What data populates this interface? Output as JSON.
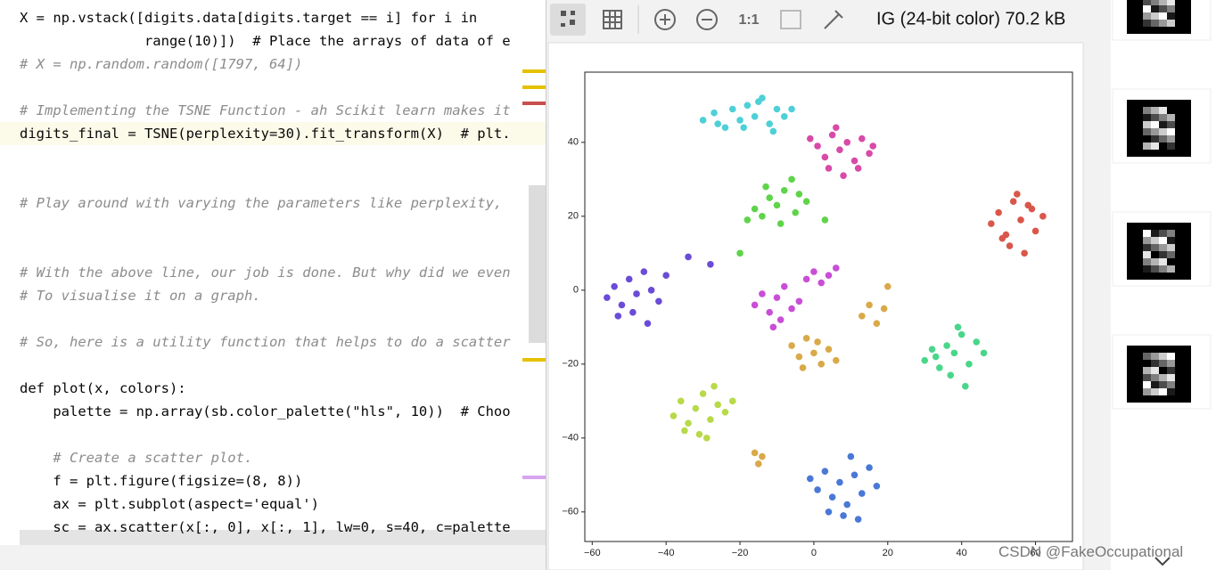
{
  "editor": {
    "lines": [
      "X = np.vstack([digits.data[digits.target == i] for i in",
      "               range(10)])  # Place the arrays of data of e",
      "# X = np.random.random([1797, 64])",
      "# Implementing the TSNE Function - ah Scikit learn makes it",
      "digits_final = TSNE(perplexity=30).fit_transform(X)  # plt.",
      "# Play around with varying the parameters like perplexity,",
      "# With the above line, our job is done. But why did we even",
      "# To visualise it on a graph.",
      "# So, here is a utility function that helps to do a scatter",
      "def plot(x, colors):",
      "    palette = np.array(sb.color_palette(\"hls\", 10))  # Choo",
      "    # Create a scatter plot.",
      "    f = plt.figure(figsize=(8, 8))",
      "    ax = plt.subplot(aspect='equal')",
      "    sc = ax.scatter(x[:, 0], x[:, 1], lw=0, s=40, c=palette"
    ]
  },
  "viewer": {
    "zoom_label": "1:1",
    "info": "IG (24-bit color) 70.2 kB"
  },
  "watermark": "CSDN @FakeOccupational",
  "chart_data": {
    "type": "scatter",
    "xlim": [
      -62,
      70
    ],
    "ylim": [
      -68,
      59
    ],
    "xticks": [
      {
        "value": -60,
        "label": "−60"
      },
      {
        "value": -40,
        "label": "−40"
      },
      {
        "value": -20,
        "label": "−20"
      },
      0,
      20,
      40,
      60
    ],
    "yticks": [
      {
        "value": -60,
        "label": "−60"
      },
      {
        "value": -40,
        "label": "−40"
      },
      {
        "value": -20,
        "label": "−20"
      },
      0,
      20,
      40
    ],
    "series": [
      {
        "color": "#4dd0d8",
        "x": [
          -30,
          -27,
          -24,
          -22,
          -20,
          -18,
          -16,
          -14,
          -12,
          -10,
          -8,
          -6,
          -26,
          -19,
          -15,
          -11
        ],
        "y": [
          46,
          48,
          44,
          49,
          46,
          50,
          47,
          52,
          45,
          49,
          47,
          49,
          45,
          44,
          51,
          43
        ]
      },
      {
        "color": "#d84aa8",
        "x": [
          -1,
          1,
          3,
          5,
          7,
          9,
          11,
          13,
          15,
          16,
          4,
          8,
          12,
          6
        ],
        "y": [
          41,
          39,
          36,
          42,
          38,
          40,
          35,
          41,
          37,
          39,
          33,
          31,
          33,
          44
        ]
      },
      {
        "color": "#5fd44a",
        "x": [
          -18,
          -16,
          -14,
          -12,
          -10,
          -8,
          -6,
          -4,
          -2,
          -9,
          -13,
          -5,
          -20,
          3
        ],
        "y": [
          19,
          22,
          20,
          25,
          23,
          27,
          30,
          26,
          24,
          18,
          28,
          21,
          10,
          19
        ]
      },
      {
        "color": "#d9574a",
        "x": [
          48,
          50,
          52,
          54,
          56,
          58,
          60,
          62,
          53,
          57,
          55,
          51,
          59
        ],
        "y": [
          18,
          21,
          15,
          24,
          19,
          23,
          16,
          20,
          12,
          10,
          26,
          14,
          22
        ]
      },
      {
        "color": "#6a4cd6",
        "x": [
          -56,
          -54,
          -52,
          -50,
          -48,
          -46,
          -44,
          -42,
          -49,
          -45,
          -53,
          -40,
          -34,
          -28
        ],
        "y": [
          -2,
          1,
          -4,
          3,
          -1,
          5,
          0,
          -3,
          -6,
          -9,
          -7,
          4,
          9,
          7
        ]
      },
      {
        "color": "#c94ed6",
        "x": [
          -16,
          -14,
          -12,
          -10,
          -8,
          -6,
          -4,
          -2,
          0,
          2,
          4,
          6,
          -9,
          -11
        ],
        "y": [
          -4,
          -1,
          -6,
          -2,
          1,
          -5,
          -3,
          3,
          5,
          2,
          4,
          6,
          -8,
          -10
        ]
      },
      {
        "color": "#d9a94a",
        "x": [
          -6,
          -4,
          -2,
          0,
          2,
          4,
          6,
          -3,
          1,
          13,
          15,
          17,
          19,
          20,
          -16,
          -15,
          -14
        ],
        "y": [
          -15,
          -18,
          -13,
          -17,
          -20,
          -16,
          -19,
          -21,
          -14,
          -7,
          -4,
          -9,
          -5,
          1,
          -44,
          -47,
          -45
        ]
      },
      {
        "color": "#4ad68a",
        "x": [
          30,
          32,
          34,
          36,
          38,
          40,
          42,
          44,
          37,
          41,
          33,
          39,
          46
        ],
        "y": [
          -19,
          -16,
          -21,
          -15,
          -17,
          -12,
          -20,
          -14,
          -23,
          -26,
          -18,
          -10,
          -17
        ]
      },
      {
        "color": "#b8d94a",
        "x": [
          -38,
          -36,
          -34,
          -32,
          -30,
          -28,
          -26,
          -24,
          -22,
          -31,
          -35,
          -27,
          -29
        ],
        "y": [
          -34,
          -30,
          -36,
          -32,
          -28,
          -35,
          -31,
          -33,
          -30,
          -39,
          -38,
          -26,
          -40
        ]
      },
      {
        "color": "#4a78d6",
        "x": [
          -1,
          1,
          3,
          5,
          7,
          9,
          11,
          13,
          15,
          17,
          8,
          4,
          12,
          10
        ],
        "y": [
          -51,
          -54,
          -49,
          -56,
          -52,
          -58,
          -50,
          -55,
          -48,
          -53,
          -61,
          -60,
          -62,
          -45
        ]
      }
    ]
  }
}
